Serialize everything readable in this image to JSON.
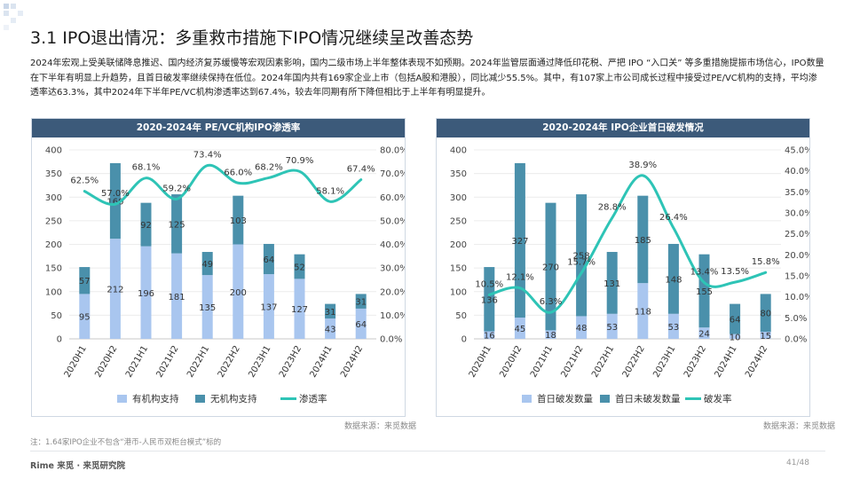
{
  "header": {
    "title": "3.1 IPO退出情况：多重救市措施下IPO情况继续呈改善态势",
    "paragraph": "2024年宏观上受美联储降息推迟、国内经济复苏缓慢等宏观因素影响，国内二级市场上半年整体表现不如预期。2024年监管层面通过降低印花税、严把 IPO “入口关” 等多重措施提振市场信心，IPO数量在下半年有明显上升趋势，且首日破发率继续保持在低位。2024年国内共有169家企业上市（包括A股和港股），同比减少55.5%。其中，有107家上市公司成长过程中接受过PE/VC机构的支持，平均渗透率达63.3%，其中2024年下半年PE/VC机构渗透率达到67.4%，较去年同期有所下降但相比于上半年有明显提升。"
  },
  "left_panel": {
    "header": "2020-2024年 PE/VC机构IPO渗透率",
    "source": "数据来源：来觅数据"
  },
  "right_panel": {
    "header": "2020-2024年 IPO企业首日破发情况",
    "source": "数据来源：来觅数据"
  },
  "footer": {
    "footnote": "注：1.64家IPO企业不包含“港币-人民币双柜台模式”标的",
    "brand": "Rime 来觅 · 来觅研究院",
    "page": "41/48"
  },
  "colors": {
    "light_bar": "#a9c6ef",
    "dark_bar": "#4a90ab",
    "line": "#2ec4b6",
    "header_bg": "#3c5a7a"
  },
  "chart_data": [
    {
      "type": "bar",
      "stacked": true,
      "categories": [
        "2020H1",
        "2020H2",
        "2021H1",
        "2021H2",
        "2022H1",
        "2022H2",
        "2023H1",
        "2023H2",
        "2024H1",
        "2024H2"
      ],
      "series": [
        {
          "name": "有机构支持",
          "values": [
            95,
            212,
            196,
            181,
            135,
            200,
            137,
            127,
            43,
            64
          ]
        },
        {
          "name": "无机构支持",
          "values": [
            57,
            160,
            92,
            125,
            49,
            103,
            64,
            52,
            31,
            31
          ]
        }
      ],
      "line_series": {
        "name": "渗透率",
        "values": [
          62.5,
          57.0,
          68.1,
          59.2,
          73.4,
          66.0,
          68.2,
          70.9,
          58.1,
          67.4
        ],
        "labels": [
          "62.5%",
          "57.0%",
          "68.1%",
          "59.2%",
          "73.4%",
          "66.0%",
          "68.2%",
          "70.9%",
          "58.1%",
          "67.4%"
        ]
      },
      "ylim": [
        0,
        400
      ],
      "yticks": [
        "0",
        "50",
        "100",
        "150",
        "200",
        "250",
        "300",
        "350",
        "400"
      ],
      "y2lim": [
        0,
        80
      ],
      "y2ticks": [
        "0.0%",
        "10.0%",
        "20.0%",
        "30.0%",
        "40.0%",
        "50.0%",
        "60.0%",
        "70.0%",
        "80.0%"
      ],
      "legend": "bottom"
    },
    {
      "type": "bar",
      "stacked": true,
      "categories": [
        "2020H1",
        "2020H2",
        "2021H1",
        "2021H2",
        "2022H1",
        "2022H2",
        "2023H1",
        "2023H2",
        "2024H1",
        "2024H2"
      ],
      "series": [
        {
          "name": "首日破发数量",
          "values": [
            16,
            45,
            18,
            48,
            53,
            118,
            53,
            24,
            10,
            15
          ]
        },
        {
          "name": "首日未破发数量",
          "values": [
            136,
            327,
            270,
            258,
            131,
            185,
            148,
            155,
            64,
            80
          ]
        }
      ],
      "line_series": {
        "name": "破发率",
        "values": [
          10.5,
          12.1,
          6.3,
          15.7,
          28.8,
          38.9,
          26.4,
          13.4,
          13.5,
          15.8
        ],
        "labels": [
          "10.5%",
          "12.1%",
          "6.3%",
          "15.7%",
          "28.8%",
          "38.9%",
          "26.4%",
          "13.4%",
          "13.5%",
          "15.8%"
        ]
      },
      "ylim": [
        0,
        400
      ],
      "yticks": [
        "0",
        "50",
        "100",
        "150",
        "200",
        "250",
        "300",
        "350",
        "400"
      ],
      "y2lim": [
        0,
        45
      ],
      "y2ticks": [
        "0.0%",
        "5.0%",
        "10.0%",
        "15.0%",
        "20.0%",
        "25.0%",
        "30.0%",
        "35.0%",
        "40.0%",
        "45.0%"
      ],
      "legend": "bottom"
    }
  ]
}
